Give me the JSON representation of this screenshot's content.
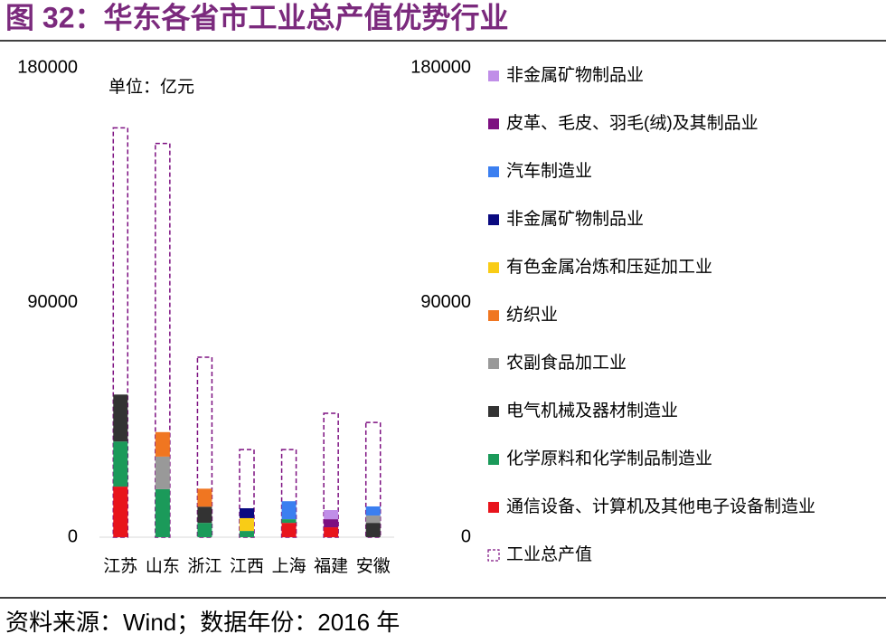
{
  "chart_data": {
    "type": "bar",
    "stacked": true,
    "title": "图 32：华东各省市工业总产值优势行业",
    "annotation": "单位：亿元",
    "source": "资料来源：Wind；数据年份：2016 年",
    "categories": [
      "江苏",
      "山东",
      "浙江",
      "江西",
      "上海",
      "福建",
      "安徽"
    ],
    "series": [
      {
        "name": "通信设备、计算机及其他电子设备制造业",
        "color": "#e8141c",
        "values": [
          19400,
          null,
          null,
          null,
          5500,
          3800,
          null
        ]
      },
      {
        "name": "化学原料和化学制品制造业",
        "color": "#1b9a5a",
        "values": [
          17300,
          18400,
          5500,
          2400,
          1400,
          null,
          null
        ]
      },
      {
        "name": "电气机械及器材制造业",
        "color": "#333333",
        "values": [
          18000,
          null,
          6200,
          null,
          null,
          null,
          5500
        ]
      },
      {
        "name": "农副食品加工业",
        "color": "#999999",
        "values": [
          null,
          12500,
          null,
          null,
          null,
          null,
          2800
        ]
      },
      {
        "name": "纺织业",
        "color": "#f07621",
        "values": [
          null,
          9400,
          6900,
          null,
          null,
          null,
          null
        ]
      },
      {
        "name": "有色金属冶炼和压延加工业",
        "color": "#f9cc16",
        "values": [
          null,
          null,
          null,
          4900,
          null,
          null,
          null
        ]
      },
      {
        "name": "非金属矿物制品业",
        "color": "#0a0a80",
        "values": [
          null,
          null,
          null,
          3800,
          null,
          null,
          null
        ]
      },
      {
        "name": "汽车制造业",
        "color": "#3b7ff0",
        "values": [
          null,
          null,
          null,
          null,
          6900,
          null,
          3500
        ]
      },
      {
        "name": "皮革、毛皮、羽毛(绒)及其制品业",
        "color": "#7d1081",
        "values": [
          null,
          null,
          null,
          null,
          null,
          3100,
          null
        ]
      },
      {
        "name": "非金属矿物制品业",
        "color": "#c08ee8",
        "values": [
          null,
          null,
          null,
          null,
          null,
          3500,
          null
        ]
      }
    ],
    "total": {
      "name": "工业总产值",
      "color": "#7d1081",
      "values": [
        157000,
        151000,
        69000,
        33600,
        33600,
        47500,
        44000
      ]
    },
    "ylim": [
      0,
      180000
    ],
    "yticks": [
      0,
      90000,
      180000
    ],
    "y2lim": [
      0,
      180000
    ],
    "y2ticks": [
      0,
      90000,
      180000
    ]
  }
}
